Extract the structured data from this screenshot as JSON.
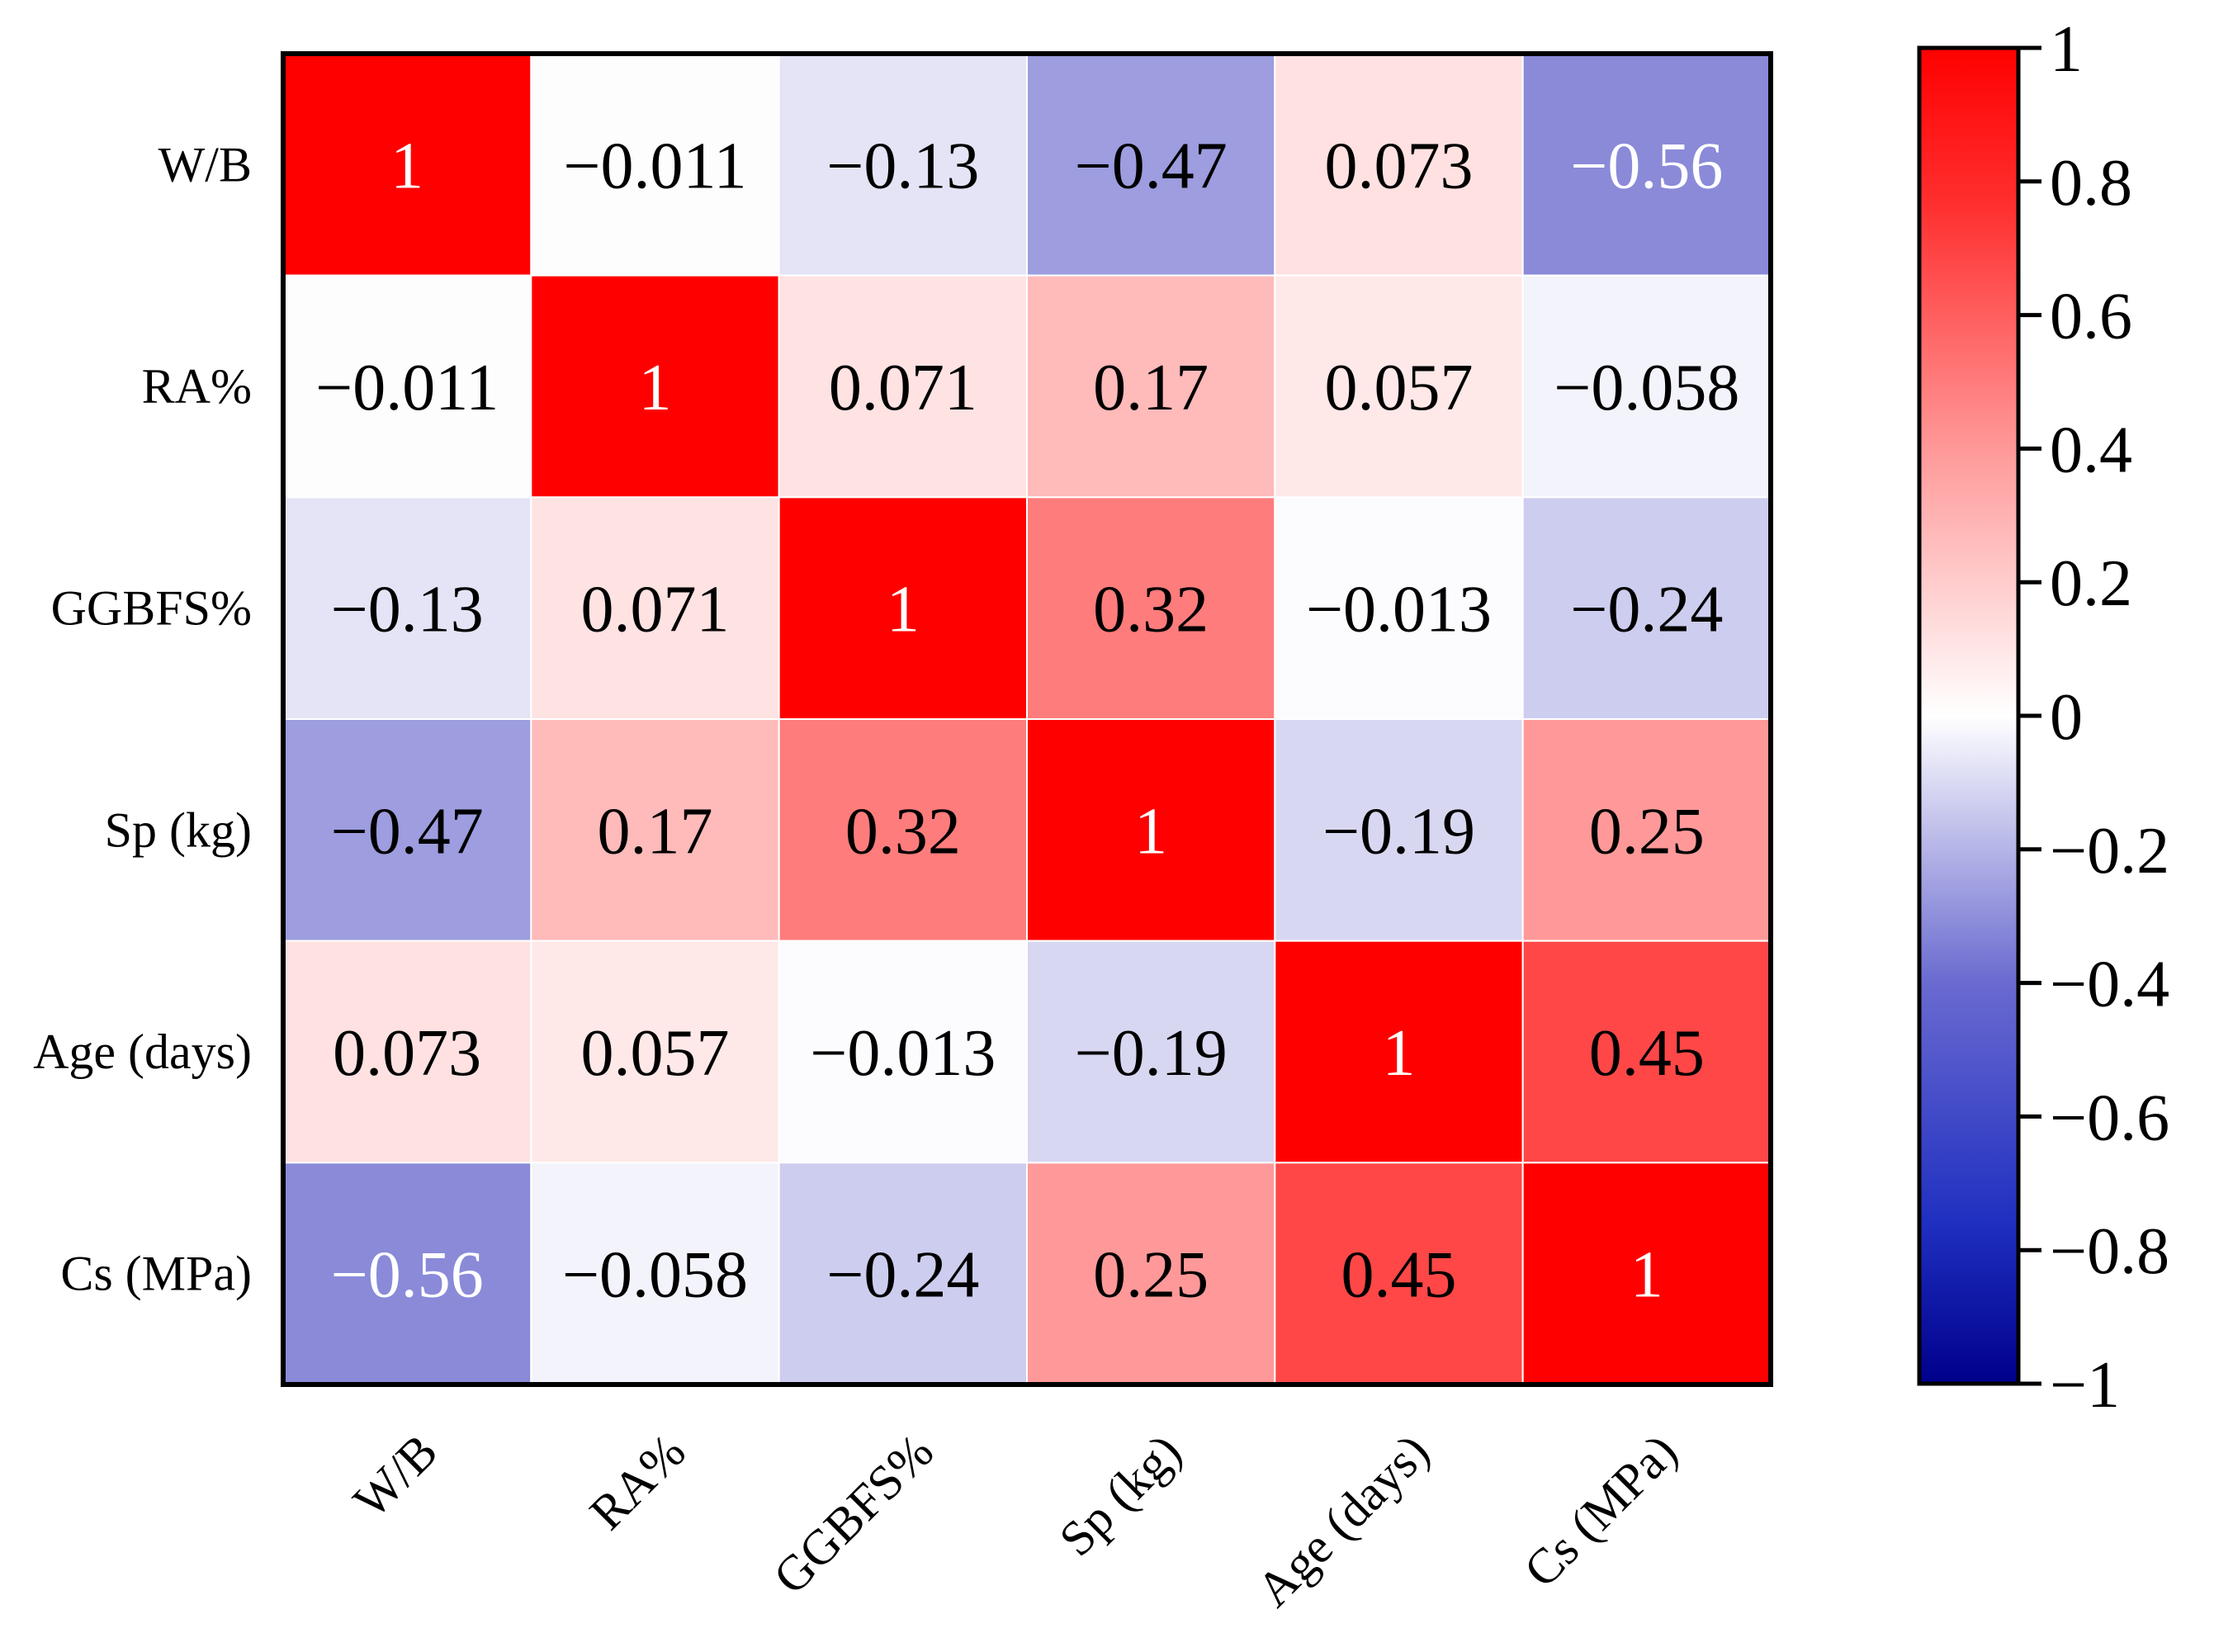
{
  "chart_data": {
    "type": "heatmap",
    "title": "",
    "xlabel": "",
    "ylabel": "",
    "rows": [
      "W/B",
      "RA%",
      "GGBFS%",
      "Sp (kg)",
      "Age (days)",
      "Cs (MPa)"
    ],
    "columns": [
      "W/B",
      "RA%",
      "GGBFS%",
      "Sp (kg)",
      "Age (days)",
      "Cs (MPa)"
    ],
    "values": [
      [
        1,
        -0.011,
        -0.13,
        -0.47,
        0.073,
        -0.56
      ],
      [
        -0.011,
        1,
        0.071,
        0.17,
        0.057,
        -0.058
      ],
      [
        -0.13,
        0.071,
        1,
        0.32,
        -0.013,
        -0.24
      ],
      [
        -0.47,
        0.17,
        0.32,
        1,
        -0.19,
        0.25
      ],
      [
        0.073,
        0.057,
        -0.013,
        -0.19,
        1,
        0.45
      ],
      [
        -0.56,
        -0.058,
        -0.24,
        0.25,
        0.45,
        1
      ]
    ],
    "value_labels": [
      [
        "1",
        "−0.011",
        "−0.13",
        "−0.47",
        "0.073",
        "−0.56"
      ],
      [
        "−0.011",
        "1",
        "0.071",
        "0.17",
        "0.057",
        "−0.058"
      ],
      [
        "−0.13",
        "0.071",
        "1",
        "0.32",
        "−0.013",
        "−0.24"
      ],
      [
        "−0.47",
        "0.17",
        "0.32",
        "1",
        "−0.19",
        "0.25"
      ],
      [
        "0.073",
        "0.057",
        "−0.013",
        "−0.19",
        "1",
        "0.45"
      ],
      [
        "−0.56",
        "−0.058",
        "−0.24",
        "0.25",
        "0.45",
        "1"
      ]
    ],
    "colorbar": {
      "range": [
        -1,
        1
      ],
      "ticks": [
        1,
        0.8,
        0.6,
        0.4,
        0.2,
        0,
        -0.2,
        -0.4,
        -0.6,
        -0.8,
        -1
      ],
      "tick_labels": [
        "1",
        "0.8",
        "0.6",
        "0.4",
        "0.2",
        "0",
        "−0.2",
        "−0.4",
        "−0.6",
        "−0.8",
        "−1"
      ],
      "colormap": "bwr",
      "colors": {
        "low": "#00008b",
        "mid": "#ffffff",
        "high": "#ff0000"
      }
    }
  }
}
